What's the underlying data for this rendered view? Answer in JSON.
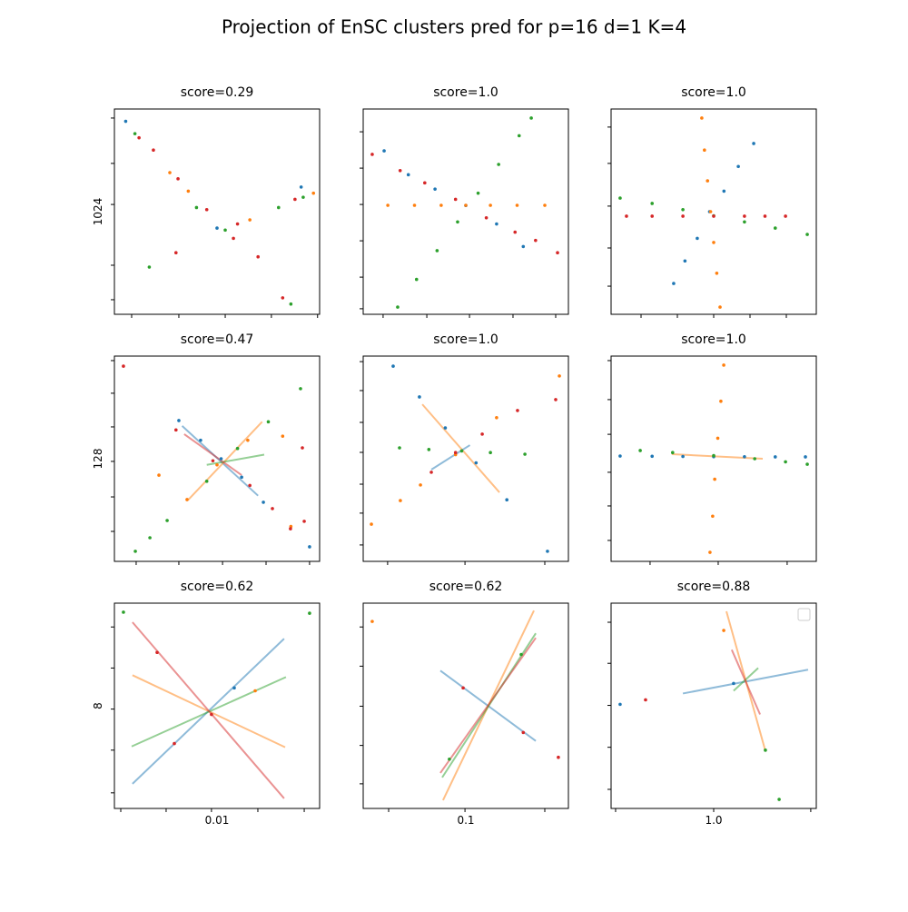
{
  "title": "Projection of EnSC clusters pred for p=16 d=1 K=4",
  "chart_data": [
    {
      "type": "scatter",
      "title": "score=0.29",
      "ylabel": "1024",
      "xlim": [
        0,
        100
      ],
      "ylim": [
        0,
        100
      ],
      "xticks": [
        8.4,
        31.4,
        54,
        76.5,
        99
      ],
      "yticks": [
        7.1,
        23.9,
        53.5,
        73.5,
        95.6
      ],
      "series": [
        {
          "color": "#1f77b4",
          "x": [
            5.5,
            50,
            91
          ],
          "y": [
            94,
            42,
            62
          ]
        },
        {
          "color": "#ff7f0e",
          "x": [
            27,
            36,
            66,
            97
          ],
          "y": [
            69,
            60,
            46,
            59
          ]
        },
        {
          "color": "#2ca02c",
          "x": [
            10,
            17,
            40,
            54,
            80,
            92,
            86
          ],
          "y": [
            88,
            23,
            52,
            41,
            52,
            57,
            5
          ]
        },
        {
          "color": "#d62728",
          "x": [
            12,
            19,
            31,
            45,
            58,
            70,
            82,
            30,
            60,
            88
          ],
          "y": [
            86,
            80,
            66,
            51,
            37,
            28,
            8,
            30,
            44,
            56
          ]
        }
      ]
    },
    {
      "type": "scatter",
      "title": "score=1.0",
      "xlim": [
        0,
        100
      ],
      "ylim": [
        0,
        100
      ],
      "xticks": [
        9.7,
        31,
        51.8,
        73,
        93.8
      ],
      "yticks": [
        2.7,
        18.1,
        35.8,
        53.5,
        71.2,
        88.9
      ],
      "series": [
        {
          "color": "#1f77b4",
          "x": [
            10.2,
            22,
            35,
            50,
            65,
            78
          ],
          "y": [
            79.6,
            68,
            61,
            53,
            44,
            33
          ]
        },
        {
          "color": "#ff7f0e",
          "x": [
            12,
            25,
            38,
            50,
            62,
            75,
            88.5
          ],
          "y": [
            53.1,
            53.1,
            53.1,
            53.1,
            53.1,
            53.1,
            53.1
          ]
        },
        {
          "color": "#2ca02c",
          "x": [
            16.8,
            26,
            36,
            46,
            56,
            66,
            76,
            81.9
          ],
          "y": [
            3.5,
            17,
            31,
            45,
            59,
            73,
            87,
            95.6
          ]
        },
        {
          "color": "#d62728",
          "x": [
            4.4,
            18,
            30,
            45,
            60,
            74,
            84,
            94.7
          ],
          "y": [
            77.9,
            70,
            64,
            56,
            47,
            40,
            36,
            30
          ]
        }
      ]
    },
    {
      "type": "scatter",
      "title": "score=1.0",
      "xlim": [
        0,
        100
      ],
      "ylim": [
        0,
        100
      ],
      "xticks": [
        14.6,
        32.3,
        50,
        67.7,
        85.4
      ],
      "yticks": [
        13.7,
        32.3,
        52.7,
        73.5,
        91.2
      ],
      "series": [
        {
          "color": "#1f77b4",
          "x": [
            30.5,
            36,
            42,
            48,
            55,
            62,
            69.5
          ],
          "y": [
            15,
            26,
            37,
            50,
            60,
            72,
            83.2
          ]
        },
        {
          "color": "#ff7f0e",
          "x": [
            44.2,
            45.5,
            47,
            48.5,
            50,
            51.5,
            53.1
          ],
          "y": [
            95.6,
            80,
            65,
            50,
            35,
            20,
            3.5
          ]
        },
        {
          "color": "#2ca02c",
          "x": [
            4.4,
            20,
            35,
            50,
            65,
            80,
            95.6
          ],
          "y": [
            56.6,
            54,
            51,
            48,
            45,
            42,
            38.9
          ]
        },
        {
          "color": "#d62728",
          "x": [
            7.5,
            20,
            35,
            50,
            65,
            75,
            85
          ],
          "y": [
            47.8,
            47.8,
            47.8,
            47.8,
            47.8,
            47.8,
            47.8
          ]
        }
      ]
    },
    {
      "type": "scatter",
      "title": "score=0.47",
      "ylabel": "128",
      "xlim": [
        0,
        100
      ],
      "ylim": [
        0,
        100
      ],
      "xticks": [
        10.6,
        31.4,
        52.7,
        73.9,
        95.1
      ],
      "yticks": [
        14.6,
        31.4,
        48.7,
        65.5,
        81.9,
        97.8
      ],
      "series": [
        {
          "color": "#1f77b4",
          "x": [
            31.4,
            42,
            52,
            62,
            72.6,
            95.1
          ],
          "y": [
            68.6,
            59,
            50,
            41,
            28.8,
            7.1
          ]
        },
        {
          "color": "#ff7f0e",
          "x": [
            21.7,
            35.4,
            50,
            65,
            82,
            86
          ],
          "y": [
            42,
            30.1,
            47,
            59,
            61,
            17
          ]
        },
        {
          "color": "#2ca02c",
          "x": [
            10.2,
            17.3,
            25.7,
            45,
            60,
            75,
            90.7
          ],
          "y": [
            4.9,
            11.5,
            19.9,
            39,
            55,
            68,
            84.1
          ]
        },
        {
          "color": "#d62728",
          "x": [
            4.4,
            30,
            48,
            66,
            77,
            85.8,
            91.6,
            92.5
          ],
          "y": [
            95.1,
            64,
            49,
            37,
            25.7,
            15.9,
            55.3,
            19.5
          ]
        }
      ],
      "lines": [
        {
          "color": "#1f77b4",
          "x": [
            33,
            70
          ],
          "y": [
            66,
            32
          ]
        },
        {
          "color": "#ff7f0e",
          "x": [
            36,
            72
          ],
          "y": [
            30,
            68
          ]
        },
        {
          "color": "#2ca02c",
          "x": [
            45,
            73
          ],
          "y": [
            47,
            52
          ]
        },
        {
          "color": "#d62728",
          "x": [
            34,
            62
          ],
          "y": [
            62,
            42
          ]
        }
      ]
    },
    {
      "type": "scatter",
      "title": "score=1.0",
      "xlim": [
        0,
        100
      ],
      "ylim": [
        0,
        100
      ],
      "xticks": [
        11.9,
        49.6,
        88.5
      ],
      "yticks": [
        8,
        23.5,
        37.6,
        53.1,
        67.7,
        83.2,
        97.3
      ],
      "series": [
        {
          "color": "#1f77b4",
          "x": [
            14.6,
            27.4,
            40,
            55,
            70,
            89.8
          ],
          "y": [
            95.1,
            80.1,
            65,
            48,
            30,
            4.9
          ]
        },
        {
          "color": "#ff7f0e",
          "x": [
            4,
            18.1,
            27.9,
            45,
            65,
            95.6
          ],
          "y": [
            18.1,
            29.6,
            37.2,
            52,
            70,
            90.3
          ]
        },
        {
          "color": "#2ca02c",
          "x": [
            17.7,
            32,
            48,
            62,
            78.8
          ],
          "y": [
            55.3,
            54.5,
            53.8,
            53,
            52.2
          ]
        },
        {
          "color": "#d62728",
          "x": [
            33.2,
            45,
            58,
            75.2,
            93.8
          ],
          "y": [
            43.4,
            53,
            62,
            73.5,
            78.8
          ]
        }
      ],
      "lines": [
        {
          "color": "#ff7f0e",
          "x": [
            28.8,
            66.4
          ],
          "y": [
            76.5,
            33.6
          ]
        },
        {
          "color": "#1f77b4",
          "x": [
            33.2,
            52
          ],
          "y": [
            44.7,
            56.6
          ]
        }
      ]
    },
    {
      "type": "scatter",
      "title": "score=1.0",
      "xlim": [
        0,
        100
      ],
      "ylim": [
        0,
        100
      ],
      "xticks": [
        19,
        52.2,
        85.8
      ],
      "yticks": [
        10.2,
        27,
        43.4,
        61.9,
        78.8,
        97.8
      ],
      "series": [
        {
          "color": "#1f77b4",
          "x": [
            4.4,
            20,
            35,
            50,
            65,
            80,
            94.7
          ],
          "y": [
            51.3,
            51.2,
            51.1,
            51,
            51,
            50.9,
            50.9
          ]
        },
        {
          "color": "#ff7f0e",
          "x": [
            54.9,
            53.5,
            52,
            50.5,
            49.5,
            48.2
          ],
          "y": [
            95.6,
            78,
            60,
            40,
            22,
            4.4
          ]
        },
        {
          "color": "#2ca02c",
          "x": [
            14.2,
            30,
            50,
            70,
            85,
            95.6
          ],
          "y": [
            54,
            53,
            51.5,
            50,
            48.5,
            47.3
          ]
        }
      ],
      "lines": [
        {
          "color": "#ff7f0e",
          "x": [
            29.6,
            73.9
          ],
          "y": [
            52.2,
            50
          ]
        }
      ]
    },
    {
      "type": "scatter",
      "title": "score=0.62",
      "ylabel": "8",
      "xlabel": "0.01",
      "xlim": [
        0,
        100
      ],
      "ylim": [
        0,
        100
      ],
      "xticks": [
        3.1,
        25.2,
        47.3,
        69.9,
        92.5
      ],
      "yticks": [
        7.6,
        28.4,
        48.4,
        68.4,
        88.4
      ],
      "series": [
        {
          "color": "#2ca02c",
          "x": [
            4.4,
            95.1
          ],
          "y": [
            95.6,
            95.1
          ]
        },
        {
          "color": "#d62728",
          "x": [
            20.8,
            29.2,
            47.3
          ],
          "y": [
            76,
            31.6,
            45.8
          ]
        },
        {
          "color": "#1f77b4",
          "x": [
            58.4
          ],
          "y": [
            58.7
          ]
        },
        {
          "color": "#ff7f0e",
          "x": [
            68.6
          ],
          "y": [
            57.3
          ]
        }
      ],
      "lines": [
        {
          "color": "#1f77b4",
          "x": [
            8.8,
            82.7
          ],
          "y": [
            12,
            82.7
          ]
        },
        {
          "color": "#ff7f0e",
          "x": [
            8.8,
            83.2
          ],
          "y": [
            64.9,
            29.8
          ]
        },
        {
          "color": "#2ca02c",
          "x": [
            8.4,
            83.6
          ],
          "y": [
            30.2,
            64
          ]
        },
        {
          "color": "#d62728",
          "x": [
            8.8,
            82.7
          ],
          "y": [
            90.7,
            4.9
          ]
        }
      ]
    },
    {
      "type": "scatter",
      "title": "score=0.62",
      "xlabel": "0.1",
      "xlim": [
        0,
        100
      ],
      "ylim": [
        0,
        100
      ],
      "xticks": [
        12.4,
        49.6,
        88.5
      ],
      "yticks": [
        12,
        30.7,
        49.8,
        69.3,
        88.4
      ],
      "series": [
        {
          "color": "#ff7f0e",
          "x": [
            4.4
          ],
          "y": [
            91.1
          ]
        },
        {
          "color": "#d62728",
          "x": [
            95.1,
            48.7,
            78
          ],
          "y": [
            24.9,
            58.7,
            37
          ]
        },
        {
          "color": "#2ca02c",
          "x": [
            42,
            77
          ],
          "y": [
            24,
            75
          ]
        }
      ],
      "lines": [
        {
          "color": "#1f77b4",
          "x": [
            37.6,
            84.1
          ],
          "y": [
            67.1,
            32.9
          ]
        },
        {
          "color": "#ff7f0e",
          "x": [
            38.9,
            83.2
          ],
          "y": [
            4,
            96.4
          ]
        },
        {
          "color": "#2ca02c",
          "x": [
            38.5,
            84.1
          ],
          "y": [
            15.1,
            85.3
          ]
        },
        {
          "color": "#d62728",
          "x": [
            37.6,
            84.1
          ],
          "y": [
            17.3,
            83.1
          ]
        }
      ]
    },
    {
      "type": "scatter",
      "title": "score=0.88",
      "xlabel": "1.0",
      "legend": "upper right",
      "xlim": [
        0,
        100
      ],
      "ylim": [
        0,
        100
      ],
      "xticks": [
        2.2,
        50,
        97.3
      ],
      "yticks": [
        9.3,
        29.8,
        50.2,
        70.7,
        90.7
      ],
      "series": [
        {
          "color": "#1f77b4",
          "x": [
            4.4,
            59.7
          ],
          "y": [
            50.7,
            60.9
          ]
        },
        {
          "color": "#d62728",
          "x": [
            16.8
          ],
          "y": [
            52.9
          ]
        },
        {
          "color": "#ff7f0e",
          "x": [
            54.9
          ],
          "y": [
            86.7
          ]
        },
        {
          "color": "#2ca02c",
          "x": [
            81.9,
            75.2
          ],
          "y": [
            4.4,
            28.4
          ]
        }
      ],
      "lines": [
        {
          "color": "#1f77b4",
          "x": [
            35,
            96
          ],
          "y": [
            56,
            67.6
          ]
        },
        {
          "color": "#ff7f0e",
          "x": [
            56.2,
            75.2
          ],
          "y": [
            96,
            28
          ]
        },
        {
          "color": "#2ca02c",
          "x": [
            59.7,
            71.7
          ],
          "y": [
            57.3,
            68.4
          ]
        },
        {
          "color": "#d62728",
          "x": [
            58.8,
            72.6
          ],
          "y": [
            77.3,
            45.8
          ]
        }
      ]
    }
  ]
}
